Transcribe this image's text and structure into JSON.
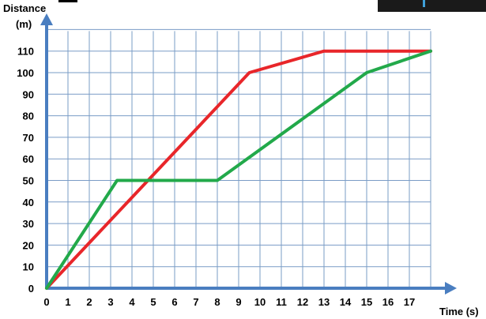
{
  "chart_data": {
    "type": "line",
    "title": "",
    "ylabel_line1": "Distance",
    "ylabel_line2": "(m)",
    "xlabel": "Time (s)",
    "xlim": [
      0,
      18
    ],
    "ylim": [
      0,
      120
    ],
    "x_ticks": [
      0,
      1,
      2,
      3,
      4,
      5,
      6,
      7,
      8,
      9,
      10,
      11,
      12,
      13,
      14,
      15,
      16,
      17
    ],
    "y_ticks": [
      0,
      10,
      20,
      30,
      40,
      50,
      60,
      70,
      80,
      90,
      100,
      110
    ],
    "grid": true,
    "legend": "none",
    "series": [
      {
        "color": "#e8262a",
        "points": [
          [
            0,
            0
          ],
          [
            9.5,
            100
          ],
          [
            13,
            110
          ],
          [
            18,
            110
          ]
        ]
      },
      {
        "color": "#22a94a",
        "points": [
          [
            0,
            0
          ],
          [
            3.3,
            50
          ],
          [
            8,
            50
          ],
          [
            15,
            100
          ],
          [
            18,
            110
          ]
        ]
      }
    ],
    "axis_color": "#4a7ec0"
  }
}
